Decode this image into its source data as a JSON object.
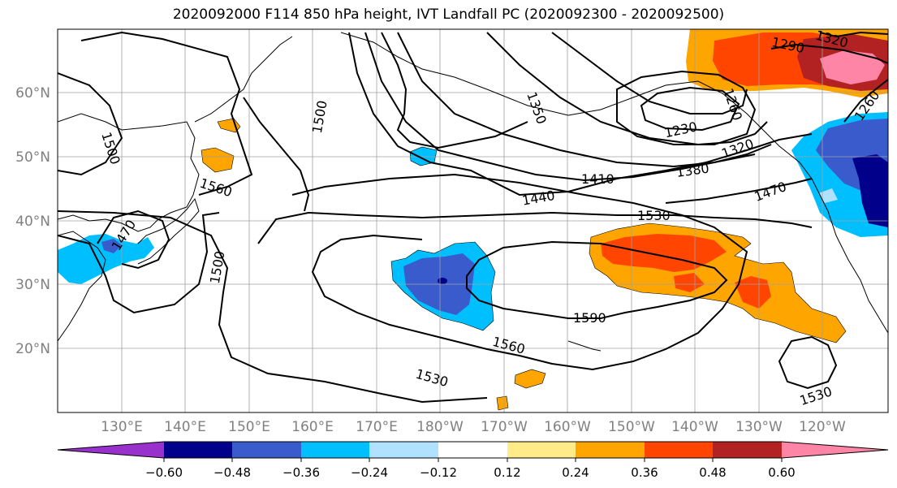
{
  "title": "2020092000 F114 850 hPa height, IVT Landfall PC (2020092300 - 2020092500)",
  "lat_labels": [
    "60°N",
    "50°N",
    "40°N",
    "30°N",
    "20°N"
  ],
  "lon_labels": [
    "130°E",
    "140°E",
    "150°E",
    "160°E",
    "170°E",
    "180°W",
    "170°W",
    "160°W",
    "150°W",
    "140°W",
    "130°W",
    "120°W"
  ],
  "colorbar": {
    "colors": [
      "#9932CC",
      "#00008B",
      "#3A5BCB",
      "#00BFFF",
      "#B0E2FF",
      "#FFFFFF",
      "#FFEB87",
      "#FFA500",
      "#FF4500",
      "#B22222",
      "#FF85A6"
    ],
    "tick_labels": [
      "−0.60",
      "−0.48",
      "−0.36",
      "−0.24",
      "−0.12",
      "0.12",
      "0.24",
      "0.36",
      "0.48",
      "0.60"
    ]
  },
  "contour_labels": [
    "1500",
    "1470",
    "1560",
    "1500",
    "1500",
    "1350",
    "1230",
    "1290",
    "1320",
    "1260",
    "1260",
    "1320",
    "1380",
    "1410",
    "1440",
    "1470",
    "1530",
    "1590",
    "1560",
    "1530",
    "1530"
  ],
  "colors": {
    "grid": "#a0a0a0",
    "axis_text": "#808080",
    "contour": "#000000"
  }
}
